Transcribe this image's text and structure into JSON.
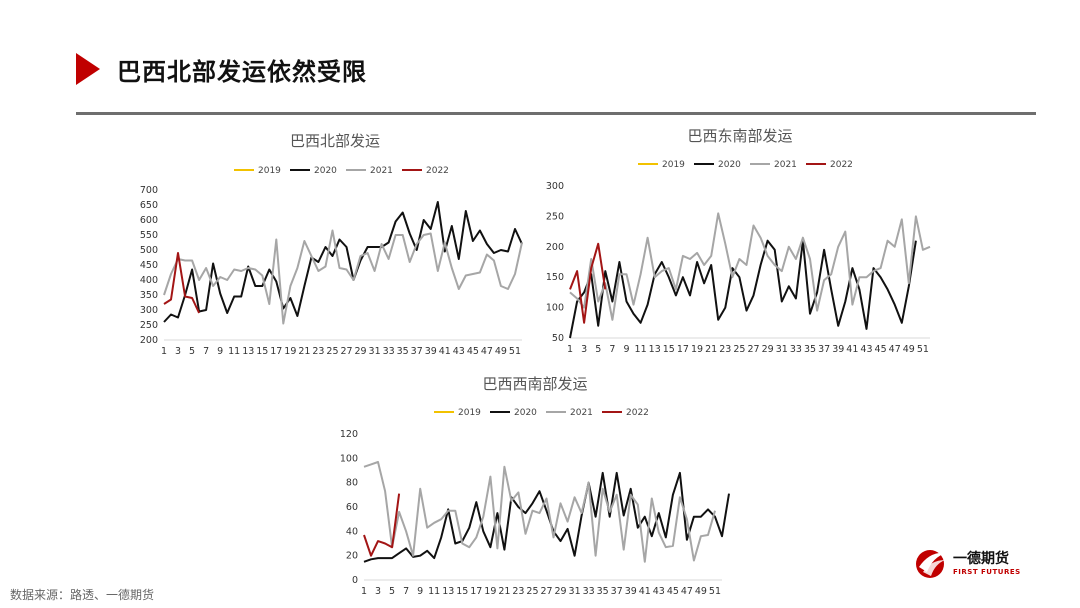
{
  "page": {
    "title": "巴西北部发运依然受限",
    "source": "数据来源：路透、一德期货"
  },
  "logo": {
    "name": "一德期货",
    "sub": "FIRST FUTURES"
  },
  "colors": {
    "accent": "#c00000",
    "s2019": "#f2c200",
    "s2020": "#111111",
    "s2021": "#a6a6a6",
    "s2022": "#a31515"
  },
  "chart_data": [
    {
      "type": "line",
      "title": "巴西北部发运",
      "ylim": [
        200,
        700
      ],
      "yticks": [
        200,
        250,
        300,
        350,
        400,
        450,
        500,
        550,
        600,
        650,
        700
      ],
      "xticks": [
        1,
        3,
        5,
        7,
        9,
        11,
        13,
        15,
        17,
        19,
        21,
        23,
        25,
        27,
        29,
        31,
        33,
        35,
        37,
        39,
        41,
        43,
        45,
        47,
        49,
        51
      ],
      "series": [
        {
          "name": "2019",
          "color": "#f2c200",
          "values": []
        },
        {
          "name": "2020",
          "color": "#111111",
          "values": [
            260,
            285,
            275,
            350,
            435,
            295,
            300,
            455,
            355,
            290,
            345,
            345,
            445,
            380,
            380,
            435,
            395,
            305,
            340,
            280,
            380,
            475,
            460,
            510,
            480,
            535,
            510,
            400,
            465,
            510,
            510,
            510,
            525,
            595,
            625,
            555,
            500,
            600,
            570,
            660,
            495,
            580,
            470,
            630,
            530,
            565,
            520,
            490,
            500,
            495,
            570,
            520
          ]
        },
        {
          "name": "2021",
          "color": "#a6a6a6",
          "values": [
            350,
            420,
            470,
            465,
            465,
            400,
            440,
            380,
            410,
            400,
            435,
            430,
            440,
            435,
            415,
            320,
            535,
            255,
            380,
            440,
            530,
            480,
            430,
            445,
            565,
            440,
            435,
            400,
            480,
            490,
            430,
            520,
            470,
            550,
            550,
            460,
            520,
            550,
            555,
            430,
            525,
            440,
            370,
            415,
            420,
            425,
            485,
            465,
            380,
            370,
            420,
            525
          ]
        },
        {
          "name": "2022",
          "color": "#a31515",
          "values": [
            320,
            335,
            490,
            345,
            340,
            290
          ]
        }
      ]
    },
    {
      "type": "line",
      "title": "巴西东南部发运",
      "ylim": [
        50,
        300
      ],
      "yticks": [
        50,
        100,
        150,
        200,
        250,
        300
      ],
      "xticks": [
        1,
        3,
        5,
        7,
        9,
        11,
        13,
        15,
        17,
        19,
        21,
        23,
        25,
        27,
        29,
        31,
        33,
        35,
        37,
        39,
        41,
        43,
        45,
        47,
        49,
        51
      ],
      "series": [
        {
          "name": "2019",
          "color": "#f2c200",
          "values": []
        },
        {
          "name": "2020",
          "color": "#111111",
          "values": [
            50,
            110,
            125,
            155,
            70,
            160,
            110,
            175,
            110,
            90,
            75,
            105,
            155,
            175,
            150,
            120,
            150,
            120,
            175,
            140,
            170,
            80,
            100,
            165,
            150,
            95,
            120,
            170,
            210,
            195,
            110,
            135,
            115,
            210,
            90,
            125,
            195,
            130,
            70,
            110,
            165,
            130,
            65,
            165,
            150,
            130,
            105,
            75,
            135,
            210
          ]
        },
        {
          "name": "2021",
          "color": "#a6a6a6",
          "values": [
            125,
            115,
            100,
            180,
            110,
            140,
            80,
            155,
            155,
            105,
            155,
            215,
            150,
            160,
            165,
            130,
            185,
            180,
            190,
            170,
            185,
            255,
            205,
            150,
            180,
            170,
            235,
            215,
            185,
            170,
            160,
            200,
            180,
            215,
            180,
            95,
            145,
            155,
            200,
            225,
            105,
            150,
            150,
            160,
            165,
            210,
            200,
            245,
            140,
            250,
            195,
            200
          ]
        },
        {
          "name": "2022",
          "color": "#a31515",
          "values": [
            130,
            160,
            75,
            165,
            205,
            130
          ]
        }
      ]
    },
    {
      "type": "line",
      "title": "巴西西南部发运",
      "ylim": [
        0,
        120
      ],
      "yticks": [
        0,
        20,
        40,
        60,
        80,
        100,
        120
      ],
      "xticks": [
        1,
        3,
        5,
        7,
        9,
        11,
        13,
        15,
        17,
        19,
        21,
        23,
        25,
        27,
        29,
        31,
        33,
        35,
        37,
        39,
        41,
        43,
        45,
        47,
        49,
        51
      ],
      "series": [
        {
          "name": "2019",
          "color": "#f2c200",
          "values": []
        },
        {
          "name": "2020",
          "color": "#111111",
          "values": [
            15,
            17,
            18,
            18,
            18,
            22,
            26,
            19,
            20,
            24,
            18,
            35,
            58,
            30,
            32,
            43,
            64,
            40,
            27,
            55,
            25,
            68,
            60,
            55,
            63,
            73,
            57,
            40,
            32,
            42,
            20,
            53,
            80,
            52,
            88,
            52,
            88,
            53,
            75,
            43,
            52,
            36,
            55,
            35,
            70,
            88,
            33,
            52,
            52,
            58,
            52,
            36,
            71
          ]
        },
        {
          "name": "2021",
          "color": "#a6a6a6",
          "values": [
            93,
            95,
            97,
            73,
            27,
            56,
            40,
            20,
            75,
            43,
            47,
            50,
            57,
            57,
            30,
            27,
            35,
            52,
            85,
            26,
            93,
            65,
            72,
            38,
            57,
            55,
            67,
            35,
            63,
            48,
            68,
            55,
            80,
            20,
            75,
            56,
            70,
            25,
            70,
            62,
            15,
            67,
            39,
            27,
            28,
            68,
            50,
            16,
            36,
            37,
            57
          ]
        },
        {
          "name": "2022",
          "color": "#a31515",
          "values": [
            37,
            20,
            32,
            30,
            27,
            71
          ]
        }
      ]
    }
  ]
}
